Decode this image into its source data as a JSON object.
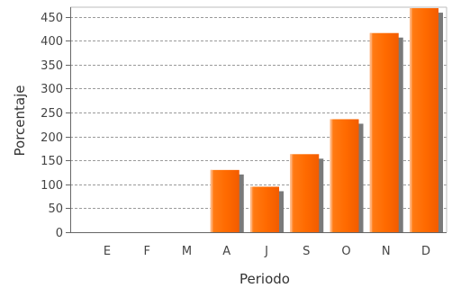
{
  "chart_data": {
    "type": "bar",
    "title": "",
    "xlabel": "Periodo",
    "ylabel": "Porcentaje",
    "categories": [
      "E",
      "F",
      "M",
      "A",
      "J",
      "S",
      "O",
      "N",
      "D"
    ],
    "values": [
      0,
      0,
      0,
      130,
      95,
      163,
      236,
      416,
      468
    ],
    "ylim": [
      0,
      470
    ],
    "yticks": [
      0,
      50,
      100,
      150,
      200,
      250,
      300,
      350,
      400,
      450
    ],
    "grid": true,
    "bar_color": "#ff6a00",
    "bar_highlight": "#ffb27a",
    "shadow_color": "#7a7a7a"
  }
}
